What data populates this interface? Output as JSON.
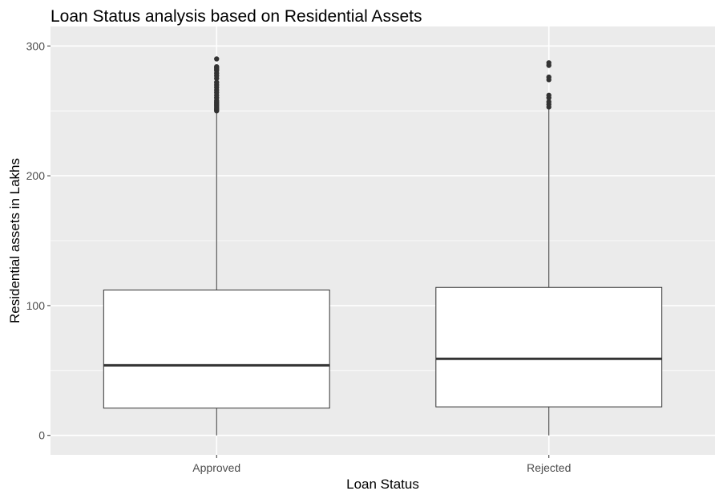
{
  "chart_data": {
    "type": "boxplot",
    "title": "Loan Status analysis based on Residential Assets",
    "xlabel": "Loan Status",
    "ylabel": "Residential assets in Lakhs",
    "ylim": [
      -15,
      315
    ],
    "yticks": [
      0,
      100,
      200,
      300
    ],
    "grid": true,
    "categories": [
      "Approved",
      "Rejected"
    ],
    "boxes": [
      {
        "category": "Approved",
        "min": 0,
        "q1": 21,
        "median": 54,
        "q3": 112,
        "whisker_high": 249,
        "outliers": [
          250,
          251,
          252,
          253,
          254,
          255,
          256,
          257,
          258,
          260,
          262,
          264,
          266,
          268,
          270,
          272,
          275,
          277,
          279,
          281,
          282,
          283,
          284,
          290
        ]
      },
      {
        "category": "Rejected",
        "min": 0,
        "q1": 22,
        "median": 59,
        "q3": 114,
        "whisker_high": 253,
        "outliers": [
          253,
          255,
          257,
          260,
          262,
          274,
          276,
          285,
          287
        ]
      }
    ],
    "colors": {
      "panel": "#ebebeb",
      "grid": "#ffffff",
      "box_fill": "#ffffff",
      "box_line": "#333333",
      "outlier": "#333333"
    }
  }
}
